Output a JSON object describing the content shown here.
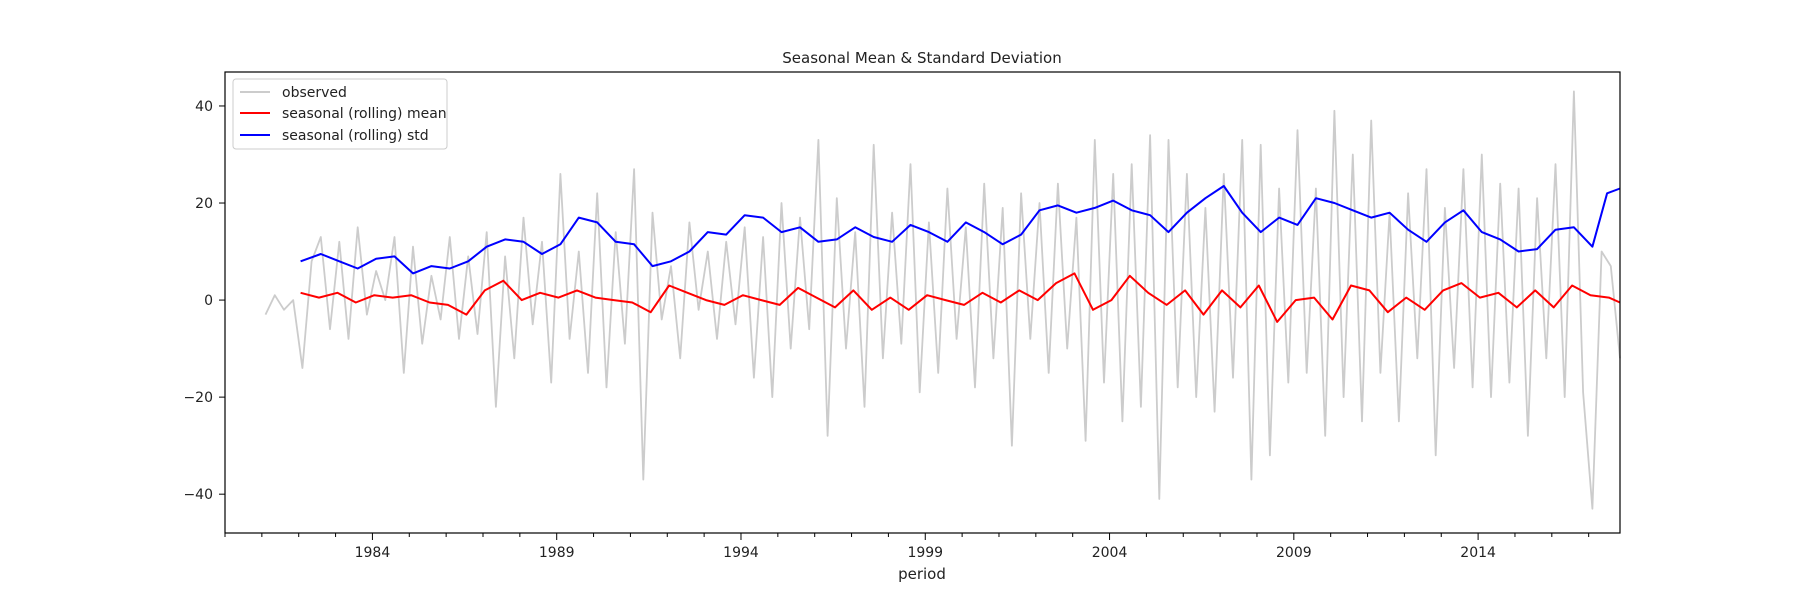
{
  "chart_data": {
    "type": "line",
    "title": "Seasonal Mean & Standard Deviation",
    "xlabel": "period",
    "ylabel": "",
    "xlim": [
      1980.0,
      2017.85
    ],
    "ylim": [
      -48,
      47
    ],
    "x_ticks": [
      "1984",
      "1989",
      "1994",
      "1999",
      "2004",
      "2009",
      "2014"
    ],
    "y_ticks": [
      40,
      20,
      0,
      -20,
      -40
    ],
    "grid": false,
    "legend_position": "top-left",
    "series": [
      {
        "name": "observed",
        "color": "#cccccc",
        "x": [
          1981.1,
          1981.35,
          1981.6,
          1981.85,
          1982.1,
          1982.35,
          1982.6,
          1982.85,
          1983.1,
          1983.35,
          1983.6,
          1983.85,
          1984.1,
          1984.35,
          1984.6,
          1984.85,
          1985.1,
          1985.35,
          1985.6,
          1985.85,
          1986.1,
          1986.35,
          1986.6,
          1986.85,
          1987.1,
          1987.35,
          1987.6,
          1987.85,
          1988.1,
          1988.35,
          1988.6,
          1988.85,
          1989.1,
          1989.35,
          1989.6,
          1989.85,
          1990.1,
          1990.35,
          1990.6,
          1990.85,
          1991.1,
          1991.35,
          1991.6,
          1991.85,
          1992.1,
          1992.35,
          1992.6,
          1992.85,
          1993.1,
          1993.35,
          1993.6,
          1993.85,
          1994.1,
          1994.35,
          1994.6,
          1994.85,
          1995.1,
          1995.35,
          1995.6,
          1995.85,
          1996.1,
          1996.35,
          1996.6,
          1996.85,
          1997.1,
          1997.35,
          1997.6,
          1997.85,
          1998.1,
          1998.35,
          1998.6,
          1998.85,
          1999.1,
          1999.35,
          1999.6,
          1999.85,
          2000.1,
          2000.35,
          2000.6,
          2000.85,
          2001.1,
          2001.35,
          2001.6,
          2001.85,
          2002.1,
          2002.35,
          2002.6,
          2002.85,
          2003.1,
          2003.35,
          2003.6,
          2003.85,
          2004.1,
          2004.35,
          2004.6,
          2004.85,
          2005.1,
          2005.35,
          2005.6,
          2005.85,
          2006.1,
          2006.35,
          2006.6,
          2006.85,
          2007.1,
          2007.35,
          2007.6,
          2007.85,
          2008.1,
          2008.35,
          2008.6,
          2008.85,
          2009.1,
          2009.35,
          2009.6,
          2009.85,
          2010.1,
          2010.35,
          2010.6,
          2010.85,
          2011.1,
          2011.35,
          2011.6,
          2011.85,
          2012.1,
          2012.35,
          2012.6,
          2012.85,
          2013.1,
          2013.35,
          2013.6,
          2013.85,
          2014.1,
          2014.35,
          2014.6,
          2014.85,
          2015.1,
          2015.35,
          2015.6,
          2015.85,
          2016.1,
          2016.35,
          2016.6,
          2016.85,
          2017.1,
          2017.35,
          2017.6,
          2017.85
        ],
        "values": [
          -3,
          1,
          -2,
          0,
          -14,
          8,
          13,
          -6,
          12,
          -8,
          15,
          -3,
          6,
          0,
          13,
          -15,
          11,
          -9,
          5,
          -4,
          13,
          -8,
          9,
          -7,
          14,
          -22,
          9,
          -12,
          17,
          -5,
          12,
          -17,
          26,
          -8,
          10,
          -15,
          22,
          -18,
          14,
          -9,
          27,
          -37,
          18,
          -4,
          7,
          -12,
          16,
          -2,
          10,
          -8,
          12,
          -5,
          15,
          -16,
          13,
          -20,
          20,
          -10,
          17,
          -6,
          33,
          -28,
          21,
          -10,
          14,
          -22,
          32,
          -12,
          18,
          -9,
          28,
          -19,
          16,
          -15,
          23,
          -8,
          15,
          -18,
          24,
          -12,
          19,
          -30,
          22,
          -8,
          20,
          -15,
          24,
          -10,
          17,
          -29,
          33,
          -17,
          26,
          -25,
          28,
          -22,
          34,
          -41,
          33,
          -18,
          26,
          -20,
          19,
          -23,
          26,
          -16,
          33,
          -37,
          32,
          -32,
          23,
          -17,
          35,
          -15,
          23,
          -28,
          39,
          -20,
          30,
          -25,
          37,
          -15,
          18,
          -25,
          22,
          -12,
          27,
          -32,
          19,
          -14,
          27,
          -18,
          30,
          -20,
          24,
          -17,
          23,
          -28,
          21,
          -12,
          28,
          -20,
          43,
          -19,
          -43,
          10,
          7,
          -12
        ]
      },
      {
        "name": "seasonal (rolling) mean",
        "color": "#ff0000",
        "x": [
          1982.05,
          1982.55,
          1983.05,
          1983.55,
          1984.05,
          1984.55,
          1985.05,
          1985.55,
          1986.05,
          1986.55,
          1987.05,
          1987.55,
          1988.05,
          1988.55,
          1989.05,
          1989.55,
          1990.05,
          1990.55,
          1991.05,
          1991.55,
          1992.05,
          1992.55,
          1993.05,
          1993.55,
          1994.05,
          1994.55,
          1995.05,
          1995.55,
          1996.05,
          1996.55,
          1997.05,
          1997.55,
          1998.05,
          1998.55,
          1999.05,
          1999.55,
          2000.05,
          2000.55,
          2001.05,
          2001.55,
          2002.05,
          2002.55,
          2003.05,
          2003.55,
          2004.05,
          2004.55,
          2005.05,
          2005.55,
          2006.05,
          2006.55,
          2007.05,
          2007.55,
          2008.05,
          2008.55,
          2009.05,
          2009.55,
          2010.05,
          2010.55,
          2011.05,
          2011.55,
          2012.05,
          2012.55,
          2013.05,
          2013.55,
          2014.05,
          2014.55,
          2015.05,
          2015.55,
          2016.05,
          2016.55,
          2017.05,
          2017.55,
          2017.85
        ],
        "values": [
          1.5,
          0.5,
          1.5,
          -0.5,
          1.0,
          0.5,
          1.0,
          -0.5,
          -1.0,
          -3.0,
          2.0,
          4.0,
          0.0,
          1.5,
          0.5,
          2.0,
          0.5,
          0.0,
          -0.5,
          -2.5,
          3.0,
          1.5,
          0.0,
          -1.0,
          1.0,
          0.0,
          -1.0,
          2.5,
          0.5,
          -1.5,
          2.0,
          -2.0,
          0.5,
          -2.0,
          1.0,
          0.0,
          -1.0,
          1.5,
          -0.5,
          2.0,
          0.0,
          3.5,
          5.5,
          -2.0,
          0.0,
          5.0,
          1.5,
          -1.0,
          2.0,
          -3.0,
          2.0,
          -1.5,
          3.0,
          -4.5,
          0.0,
          0.5,
          -4.0,
          3.0,
          2.0,
          -2.5,
          0.5,
          -2.0,
          2.0,
          3.5,
          0.5,
          1.5,
          -1.5,
          2.0,
          -1.5,
          3.0,
          1.0,
          0.5,
          -0.5
        ]
      },
      {
        "name": "seasonal (rolling) std",
        "color": "#0000ff",
        "x": [
          1982.05,
          1982.6,
          1983.1,
          1983.6,
          1984.1,
          1984.6,
          1985.1,
          1985.6,
          1986.1,
          1986.6,
          1987.1,
          1987.6,
          1988.1,
          1988.6,
          1989.1,
          1989.6,
          1990.1,
          1990.6,
          1991.1,
          1991.6,
          1992.1,
          1992.6,
          1993.1,
          1993.6,
          1994.1,
          1994.6,
          1995.1,
          1995.6,
          1996.1,
          1996.6,
          1997.1,
          1997.6,
          1998.1,
          1998.6,
          1999.1,
          1999.6,
          2000.1,
          2000.6,
          2001.1,
          2001.6,
          2002.1,
          2002.6,
          2003.1,
          2003.6,
          2004.1,
          2004.6,
          2005.1,
          2005.6,
          2006.1,
          2006.6,
          2007.1,
          2007.6,
          2008.1,
          2008.6,
          2009.1,
          2009.6,
          2010.1,
          2010.6,
          2011.1,
          2011.6,
          2012.1,
          2012.6,
          2013.1,
          2013.6,
          2014.1,
          2014.6,
          2015.1,
          2015.6,
          2016.1,
          2016.6,
          2017.1,
          2017.5,
          2017.85
        ],
        "values": [
          8.0,
          9.5,
          8.0,
          6.5,
          8.5,
          9.0,
          5.5,
          7.0,
          6.5,
          8.0,
          11.0,
          12.5,
          12.0,
          9.5,
          11.5,
          17.0,
          16.0,
          12.0,
          11.5,
          7.0,
          8.0,
          10.0,
          14.0,
          13.5,
          17.5,
          17.0,
          14.0,
          15.0,
          12.0,
          12.5,
          15.0,
          13.0,
          12.0,
          15.5,
          14.0,
          12.0,
          16.0,
          14.0,
          11.5,
          13.5,
          18.5,
          19.5,
          18.0,
          19.0,
          20.5,
          18.5,
          17.5,
          14.0,
          18.0,
          21.0,
          23.5,
          18.0,
          14.0,
          17.0,
          15.5,
          21.0,
          20.0,
          18.5,
          17.0,
          18.0,
          14.5,
          12.0,
          16.0,
          18.5,
          14.0,
          12.5,
          10.0,
          10.5,
          14.5,
          15.0,
          11.0,
          22.0,
          23.0
        ]
      }
    ]
  }
}
